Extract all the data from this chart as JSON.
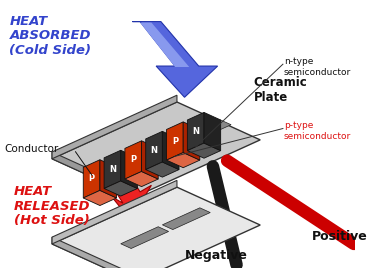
{
  "bg_color": "#ffffff",
  "heat_absorbed_text": "HEAT\nABSORBED\n(Cold Side)",
  "heat_released_text": "HEAT\nRELEASED\n(Hot Side)",
  "ceramic_plate_text": "Ceramic\nPlate",
  "conductor_text": "Conductor",
  "n_type_text": "n-type\nsemiconductor",
  "p_type_text": "p-type\nsemiconductor",
  "positive_text": "Positive",
  "negative_text": "Negative",
  "blue_arrow_color": "#3344cc",
  "blue_arrow_dark": "#1122aa",
  "red_arrow_color": "#dd1111",
  "p_block_color": "#cc3300",
  "n_block_color": "#333333",
  "plate_top_color": "#e0e0e0",
  "plate_side_color": "#b0b0b0",
  "plate_dark_color": "#888888",
  "conductor_gray": "#909090",
  "wire_black": "#1a1a1a",
  "wire_red": "#cc0000"
}
